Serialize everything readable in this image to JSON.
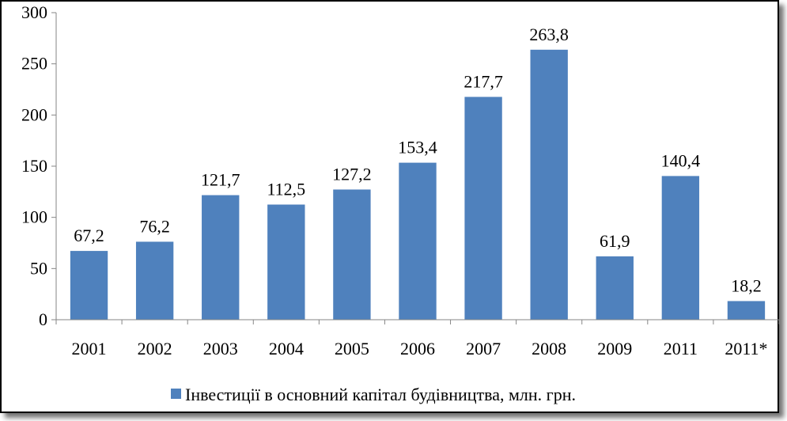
{
  "colors": {
    "bar": "#4F81BD",
    "axis": "#868686",
    "text": "#000000"
  },
  "chart_data": {
    "type": "bar",
    "title": "",
    "xlabel": "",
    "ylabel": "",
    "categories": [
      "2001",
      "2002",
      "2003",
      "2004",
      "2005",
      "2006",
      "2007",
      "2008",
      "2009",
      "2011",
      "2011*"
    ],
    "series": [
      {
        "name": "Інвестиції в основний капітал будівництва, млн. грн.",
        "values": [
          67.2,
          76.2,
          121.7,
          112.5,
          127.2,
          153.4,
          217.7,
          263.8,
          61.9,
          140.4,
          18.2
        ],
        "value_labels": [
          "67,2",
          "76,2",
          "121,7",
          "112,5",
          "127,2",
          "153,4",
          "217,7",
          "263,8",
          "61,9",
          "140,4",
          "18,2"
        ]
      }
    ],
    "ylim": [
      0,
      300
    ],
    "yticks": [
      0,
      50,
      100,
      150,
      200,
      250,
      300
    ],
    "grid": false,
    "legend": "bottom"
  }
}
